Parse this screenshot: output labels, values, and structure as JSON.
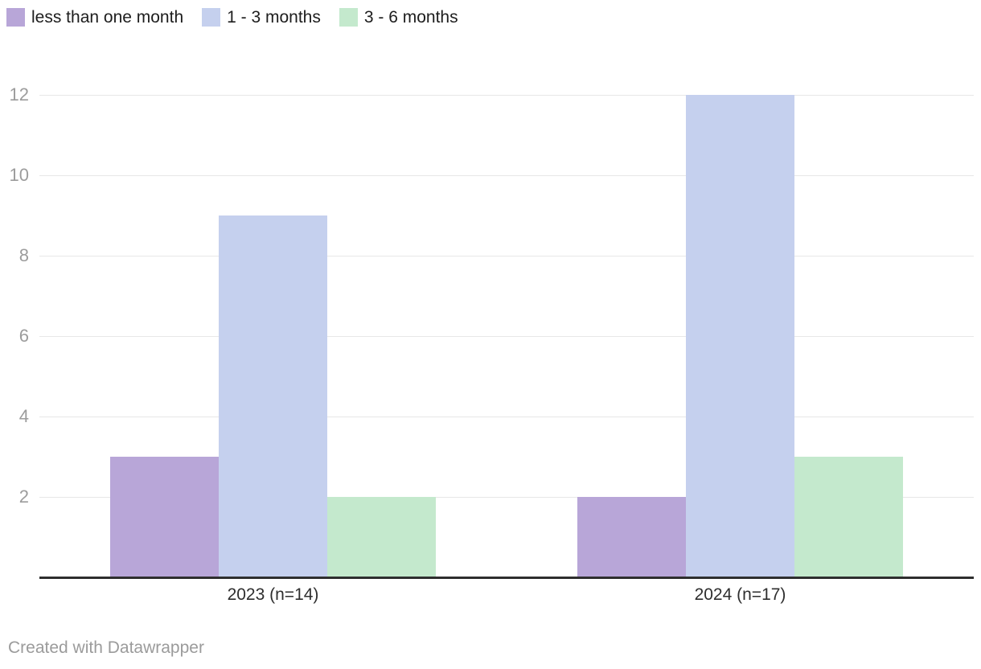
{
  "chart_data": {
    "type": "bar",
    "title": "",
    "xlabel": "",
    "ylabel": "",
    "categories": [
      "2023 (n=14)",
      "2024 (n=17)"
    ],
    "series": [
      {
        "name": "less than one month",
        "color": "#b8a6d8",
        "values": [
          3,
          2
        ]
      },
      {
        "name": "1 - 3 months",
        "color": "#c5d0ee",
        "values": [
          9,
          12
        ]
      },
      {
        "name": "3 - 6 months",
        "color": "#c4e9cd",
        "values": [
          2,
          3
        ]
      }
    ],
    "ylim": [
      0,
      12
    ],
    "yticks": [
      2,
      4,
      6,
      8,
      10,
      12
    ],
    "grid": true,
    "legend_position": "top-left"
  },
  "colors": {
    "gridline": "#e7e7e7",
    "axis_line": "#2e2e2e",
    "tick_label": "#9c9c9c",
    "category_label": "#2e2e2e",
    "legend_label": "#1d1d1d",
    "credit": "#9b9b9b",
    "background": "#ffffff"
  },
  "footer": {
    "credit_label": "Created with Datawrapper"
  }
}
